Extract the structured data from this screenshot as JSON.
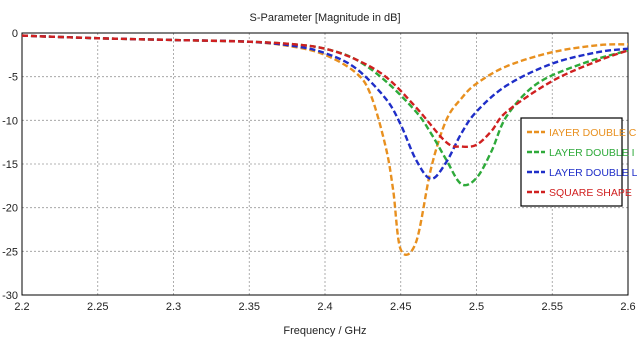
{
  "chart_data": {
    "type": "line",
    "title": "S-Parameter [Magnitude in dB]",
    "xlabel": "Frequency / GHz",
    "ylabel": "",
    "xlim": [
      2.2,
      2.6
    ],
    "ylim": [
      -30,
      0
    ],
    "x_ticks": [
      "2.2",
      "2.25",
      "2.3",
      "2.35",
      "2.4",
      "2.45",
      "2.5",
      "2.55",
      "2.6"
    ],
    "y_ticks": [
      "0",
      "-5",
      "-10",
      "-15",
      "-20",
      "-25",
      "-30"
    ],
    "grid": true,
    "legend_position": "right",
    "series": [
      {
        "name": "IAYER DOUBLE C",
        "color": "#E8901F",
        "x": [
          2.2,
          2.25,
          2.3,
          2.35,
          2.38,
          2.4,
          2.42,
          2.43,
          2.44,
          2.445,
          2.45,
          2.46,
          2.47,
          2.48,
          2.49,
          2.5,
          2.52,
          2.55,
          2.58,
          2.6
        ],
        "y": [
          -0.3,
          -0.6,
          -0.8,
          -1.0,
          -1.6,
          -2.5,
          -4.5,
          -7.0,
          -13.0,
          -18.0,
          -24.8,
          -24.0,
          -15.5,
          -10.0,
          -7.5,
          -5.8,
          -3.8,
          -2.2,
          -1.4,
          -1.3
        ]
      },
      {
        "name": "LAYER DOUBLE I",
        "color": "#2EAA3A",
        "x": [
          2.2,
          2.25,
          2.3,
          2.35,
          2.38,
          2.4,
          2.42,
          2.44,
          2.46,
          2.47,
          2.48,
          2.49,
          2.5,
          2.51,
          2.52,
          2.54,
          2.57,
          2.6
        ],
        "y": [
          -0.3,
          -0.6,
          -0.8,
          -1.0,
          -1.3,
          -1.8,
          -3.0,
          -5.5,
          -9.0,
          -11.5,
          -14.5,
          -17.3,
          -16.6,
          -13.5,
          -9.5,
          -5.8,
          -3.5,
          -2.0
        ]
      },
      {
        "name": "LAYER DOUBLE L",
        "color": "#1F2EC8",
        "x": [
          2.2,
          2.25,
          2.3,
          2.35,
          2.38,
          2.4,
          2.42,
          2.44,
          2.45,
          2.46,
          2.47,
          2.48,
          2.49,
          2.5,
          2.52,
          2.55,
          2.58,
          2.6
        ],
        "y": [
          -0.3,
          -0.6,
          -0.8,
          -1.0,
          -1.5,
          -2.3,
          -4.0,
          -7.5,
          -10.5,
          -14.5,
          -16.7,
          -14.8,
          -11.5,
          -9.0,
          -6.0,
          -3.5,
          -2.2,
          -1.8
        ]
      },
      {
        "name": "SQUARE SHAPE",
        "color": "#D02020",
        "x": [
          2.2,
          2.25,
          2.3,
          2.35,
          2.38,
          2.4,
          2.42,
          2.44,
          2.46,
          2.48,
          2.49,
          2.5,
          2.51,
          2.52,
          2.55,
          2.58,
          2.6
        ],
        "y": [
          -0.3,
          -0.6,
          -0.8,
          -1.0,
          -1.3,
          -1.8,
          -3.0,
          -5.0,
          -8.5,
          -12.5,
          -13.0,
          -12.8,
          -11.2,
          -9.0,
          -5.5,
          -3.2,
          -2.0
        ]
      }
    ]
  }
}
